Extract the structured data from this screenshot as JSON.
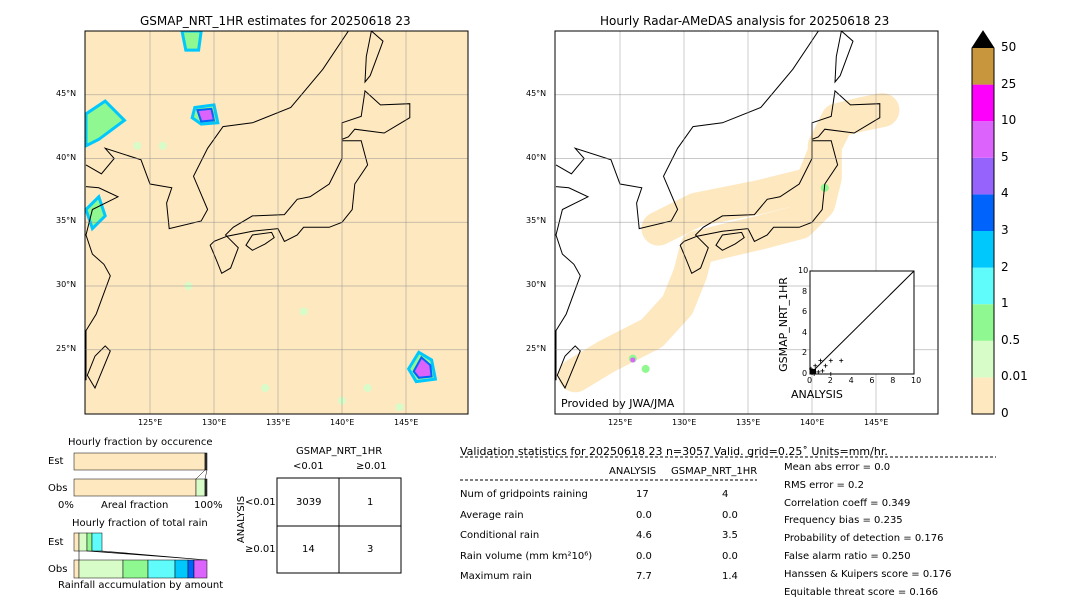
{
  "left_map": {
    "title": "GSMAP_NRT_1HR estimates for 20250618 23"
  },
  "right_map": {
    "title": "Hourly Radar-AMeDAS analysis for 20250618 23",
    "credit": "Provided by JWA/JMA"
  },
  "lon_ticks": [
    "125°E",
    "130°E",
    "135°E",
    "140°E",
    "145°E"
  ],
  "lat_ticks": [
    "45°N",
    "40°N",
    "35°N",
    "30°N",
    "25°N"
  ],
  "colorbar": {
    "labels": [
      "0",
      "0.01",
      "0.5",
      "1",
      "2",
      "3",
      "4",
      "5",
      "10",
      "25",
      "50"
    ],
    "colors": [
      "#fee8c0",
      "#d8fcc8",
      "#90f890",
      "#60fcfc",
      "#00c8fc",
      "#0064fc",
      "#9664fc",
      "#dc64fc",
      "#fc00fc",
      "#c8963c"
    ],
    "extend_color": "#000000"
  },
  "scatter": {
    "xlabel": "ANALYSIS",
    "ylabel": "GSMAP_NRT_1HR",
    "ticks": [
      "0",
      "2",
      "4",
      "6",
      "8",
      "10"
    ]
  },
  "occurrence": {
    "title": "Hourly fraction by occurence",
    "est": "Est",
    "obs": "Obs",
    "xmin": "0%",
    "xlabel": "Areal fraction",
    "xmax": "100%"
  },
  "total_rain": {
    "title": "Hourly fraction of total rain",
    "est": "Est",
    "obs": "Obs",
    "xlabel": "Rainfall accumulation by amount"
  },
  "contingency": {
    "col_title": "GSMAP_NRT_1HR",
    "col_lt": "<0.01",
    "col_ge": "≥0.01",
    "row_title": "ANALYSIS",
    "row_lt": "<0.01",
    "row_ge": "≥0.01",
    "cells": [
      "3039",
      "1",
      "14",
      "3"
    ]
  },
  "validation": {
    "header": "Validation statistics for 20250618 23  n=3057 Valid. grid=0.25˚ Units=mm/hr.",
    "col_analysis": "ANALYSIS",
    "col_gsmap": "GSMAP_NRT_1HR",
    "rows": [
      [
        "Num of gridpoints raining",
        "17",
        "4"
      ],
      [
        "Average rain",
        "0.0",
        "0.0"
      ],
      [
        "Conditional rain",
        "4.6",
        "3.5"
      ],
      [
        "Rain volume (mm km²10⁶)",
        "0.0",
        "0.0"
      ],
      [
        "Maximum rain",
        "7.7",
        "1.4"
      ]
    ],
    "scores": [
      "Mean abs error =    0.0",
      "RMS error =    0.2",
      "Correlation coeff =  0.349",
      "Frequency bias =  0.235",
      "Probability of detection =  0.176",
      "False alarm ratio =  0.250",
      "Hanssen & Kuipers score =  0.176",
      "Equitable threat score =  0.166"
    ]
  }
}
